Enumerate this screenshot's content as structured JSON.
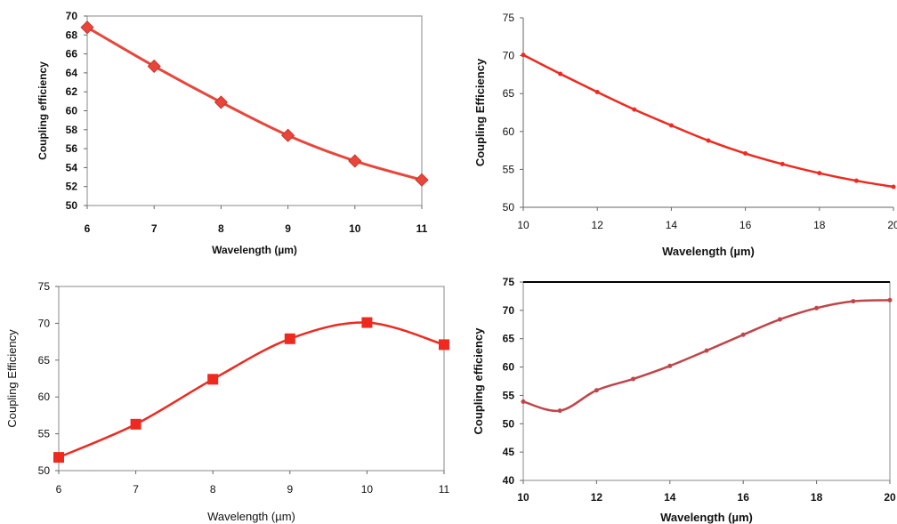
{
  "chart_data": [
    {
      "type": "line",
      "title": "",
      "xlabel": "Wavelength (µm)",
      "ylabel": "Coupling efficiency",
      "xlim": [
        6,
        11
      ],
      "ylim": [
        50,
        70
      ],
      "x_ticks": [
        "6",
        "7",
        "8",
        "9",
        "10",
        "11"
      ],
      "y_ticks": [
        "50",
        "52",
        "54",
        "56",
        "58",
        "60",
        "62",
        "64",
        "66",
        "68",
        "70"
      ],
      "marker": "diamond",
      "line_color": "#e8463a",
      "marker_color": "#e8463a",
      "series": [
        {
          "x": [
            6,
            7,
            8,
            9,
            10,
            11
          ],
          "y": [
            68.8,
            64.7,
            60.9,
            57.4,
            54.7,
            52.7
          ]
        }
      ]
    },
    {
      "type": "line",
      "title": "",
      "xlabel": "Wavelength (µm)",
      "ylabel": "Coupling Efficiency",
      "xlim": [
        10,
        20
      ],
      "ylim": [
        50,
        75
      ],
      "x_ticks": [
        "10",
        "12",
        "14",
        "16",
        "18",
        "20"
      ],
      "y_ticks": [
        "50",
        "55",
        "60",
        "65",
        "70",
        "75"
      ],
      "marker": "dot",
      "line_color": "#ee2a1f",
      "marker_color": "#ee2a1f",
      "series": [
        {
          "x": [
            10,
            11,
            12,
            13,
            14,
            15,
            16,
            17,
            18,
            19,
            20
          ],
          "y": [
            70.1,
            67.6,
            65.2,
            62.9,
            60.8,
            58.8,
            57.1,
            55.7,
            54.5,
            53.5,
            52.7
          ]
        }
      ]
    },
    {
      "type": "line",
      "title": "",
      "xlabel": "Wavelength (µm)",
      "ylabel": "Coupling Efficiency",
      "xlim": [
        6,
        11
      ],
      "ylim": [
        50,
        75
      ],
      "x_ticks": [
        "6",
        "7",
        "8",
        "9",
        "10",
        "11"
      ],
      "y_ticks": [
        "50",
        "55",
        "60",
        "65",
        "70",
        "75"
      ],
      "marker": "square",
      "line_color": "#ee2a1f",
      "marker_color": "#ee2a1f",
      "series": [
        {
          "x": [
            6,
            7,
            8,
            9,
            10,
            11
          ],
          "y": [
            51.8,
            56.3,
            62.4,
            67.9,
            70.1,
            67.1
          ]
        }
      ]
    },
    {
      "type": "line",
      "title": "",
      "xlabel": "Wavelength (µm)",
      "ylabel": "Coupling efficiency",
      "xlim": [
        10,
        20
      ],
      "ylim": [
        40,
        75
      ],
      "x_ticks": [
        "10",
        "12",
        "14",
        "16",
        "18",
        "20"
      ],
      "y_ticks": [
        "40",
        "45",
        "50",
        "55",
        "60",
        "65",
        "70",
        "75"
      ],
      "marker": "dot",
      "line_color": "#c0454a",
      "marker_color": "#c0454a",
      "series": [
        {
          "x": [
            10,
            11,
            12,
            13,
            14,
            15,
            16,
            17,
            18,
            19,
            20
          ],
          "y": [
            53.9,
            52.3,
            55.9,
            57.9,
            60.2,
            62.9,
            65.7,
            68.4,
            70.4,
            71.6,
            71.8
          ]
        }
      ]
    }
  ]
}
